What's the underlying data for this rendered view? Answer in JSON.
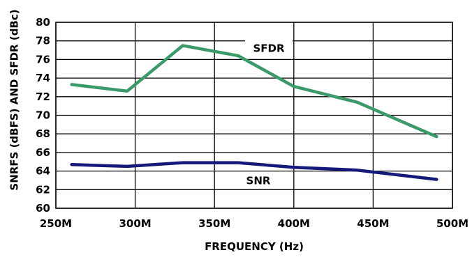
{
  "chart_data": {
    "type": "line",
    "xlabel": "FREQUENCY (Hz)",
    "ylabel": "SNRFS (dBFS) AND SFDR (dBc)",
    "xlim": [
      250,
      500
    ],
    "ylim": [
      60,
      80
    ],
    "x_ticks": [
      "250M",
      "300M",
      "350M",
      "400M",
      "450M",
      "500M"
    ],
    "y_ticks": [
      "60",
      "62",
      "64",
      "66",
      "68",
      "70",
      "72",
      "74",
      "76",
      "78",
      "80"
    ],
    "grid": true,
    "series": [
      {
        "name": "SFDR",
        "color": "#3a9a6a",
        "x": [
          260,
          295,
          330,
          365,
          400,
          440,
          490
        ],
        "y": [
          73.3,
          72.6,
          77.5,
          76.4,
          73.1,
          71.4,
          67.7
        ]
      },
      {
        "name": "SNR",
        "color": "#151a7a",
        "x": [
          260,
          295,
          330,
          365,
          400,
          440,
          490
        ],
        "y": [
          64.7,
          64.5,
          64.9,
          64.9,
          64.4,
          64.1,
          63.1
        ]
      }
    ]
  }
}
